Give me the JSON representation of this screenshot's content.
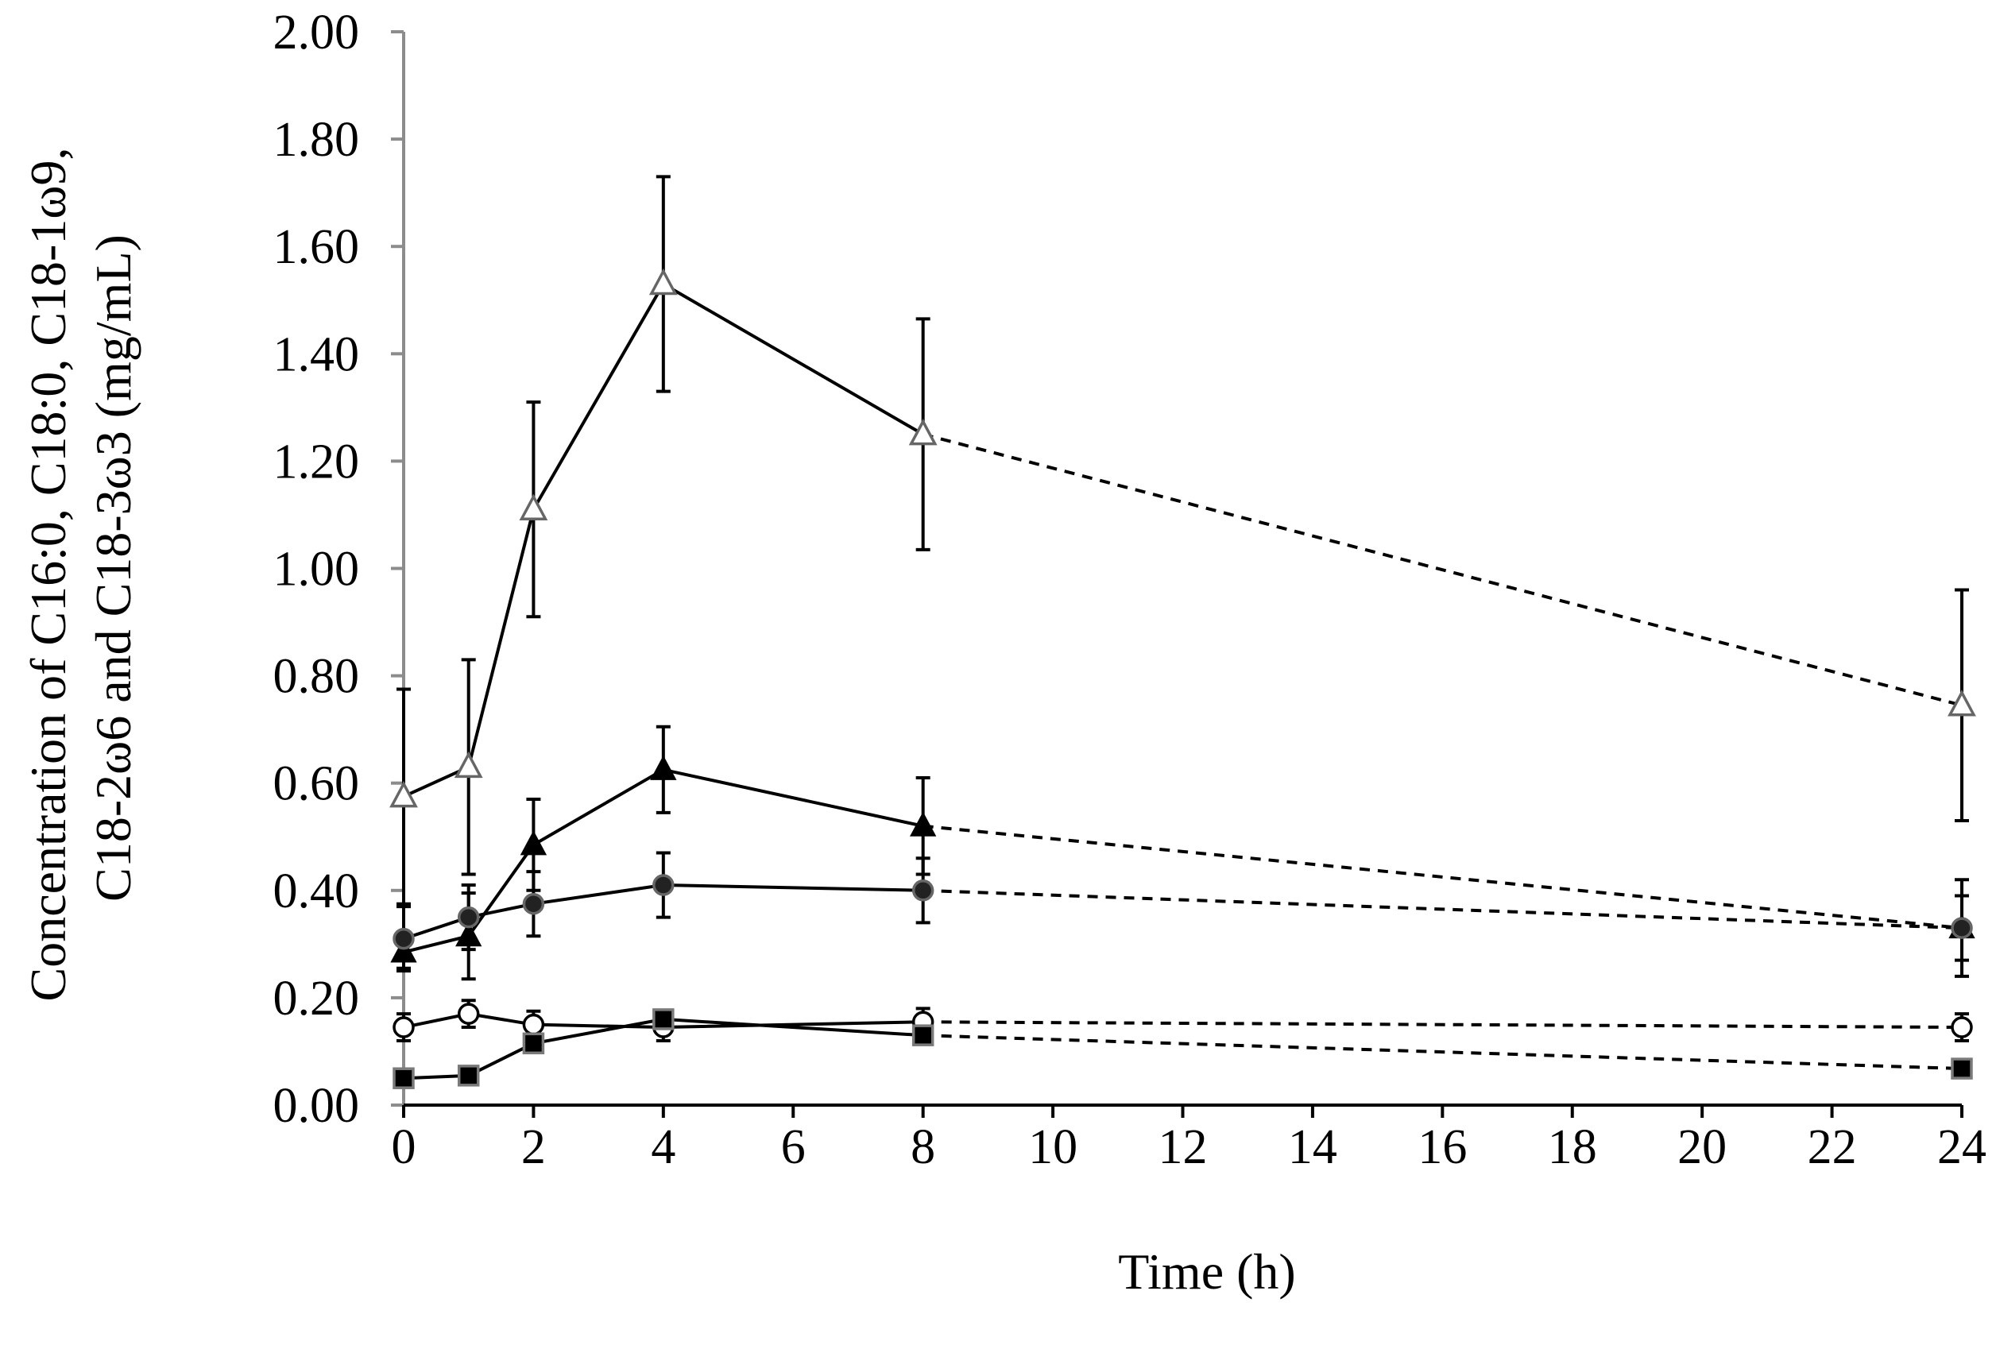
{
  "chart_data": {
    "type": "line",
    "title": "",
    "xlabel": "Time (h)",
    "ylabel_lines": [
      "Concentration of C16:0, C18:0, C18-1ω9,",
      "C18-2ω6  and C18-3ω3 (mg/mL)"
    ],
    "xlim": [
      0,
      24
    ],
    "ylim": [
      0,
      2.0
    ],
    "x_ticks": [
      0,
      2,
      4,
      6,
      8,
      10,
      12,
      14,
      16,
      18,
      20,
      22,
      24
    ],
    "x_tick_labels": [
      "0",
      "2",
      "4",
      "6",
      "8",
      "10",
      "12",
      "14",
      "16",
      "18",
      "20",
      "22",
      "24"
    ],
    "y_ticks": [
      0,
      0.2,
      0.4,
      0.6,
      0.8,
      1.0,
      1.2,
      1.4,
      1.6,
      1.8,
      2.0
    ],
    "y_tick_labels": [
      "0.00",
      "0.20",
      "0.40",
      "0.60",
      "0.80",
      "1.00",
      "1.20",
      "1.40",
      "1.60",
      "1.80",
      "2.00"
    ],
    "grid": false,
    "legend": "none",
    "solid_until_x": 8,
    "x": [
      0,
      1,
      2,
      4,
      8,
      24
    ],
    "series": [
      {
        "name": "open-triangle",
        "marker": "triangle-open",
        "values": [
          0.575,
          0.63,
          1.11,
          1.53,
          1.25,
          0.745
        ],
        "errors": [
          0.2,
          0.2,
          0.2,
          0.2,
          0.215,
          0.215
        ]
      },
      {
        "name": "filled-triangle",
        "marker": "triangle-filled",
        "values": [
          0.285,
          0.315,
          0.485,
          0.625,
          0.52,
          0.33
        ],
        "errors": [
          0.03,
          0.08,
          0.085,
          0.08,
          0.09,
          0.09
        ]
      },
      {
        "name": "filled-circle",
        "marker": "circle-filled",
        "values": [
          0.31,
          0.35,
          0.375,
          0.41,
          0.4,
          0.33
        ],
        "errors": [
          0.06,
          0.06,
          0.06,
          0.06,
          0.06,
          0.06
        ]
      },
      {
        "name": "open-circle",
        "marker": "circle-open",
        "values": [
          0.145,
          0.17,
          0.15,
          0.145,
          0.155,
          0.145
        ],
        "errors": [
          0.025,
          0.025,
          0.025,
          0.025,
          0.025,
          0.025
        ]
      },
      {
        "name": "filled-square",
        "marker": "square-filled",
        "values": [
          0.05,
          0.055,
          0.115,
          0.16,
          0.13,
          0.068
        ],
        "errors": [
          0,
          0,
          0,
          0,
          0,
          0
        ]
      }
    ]
  }
}
